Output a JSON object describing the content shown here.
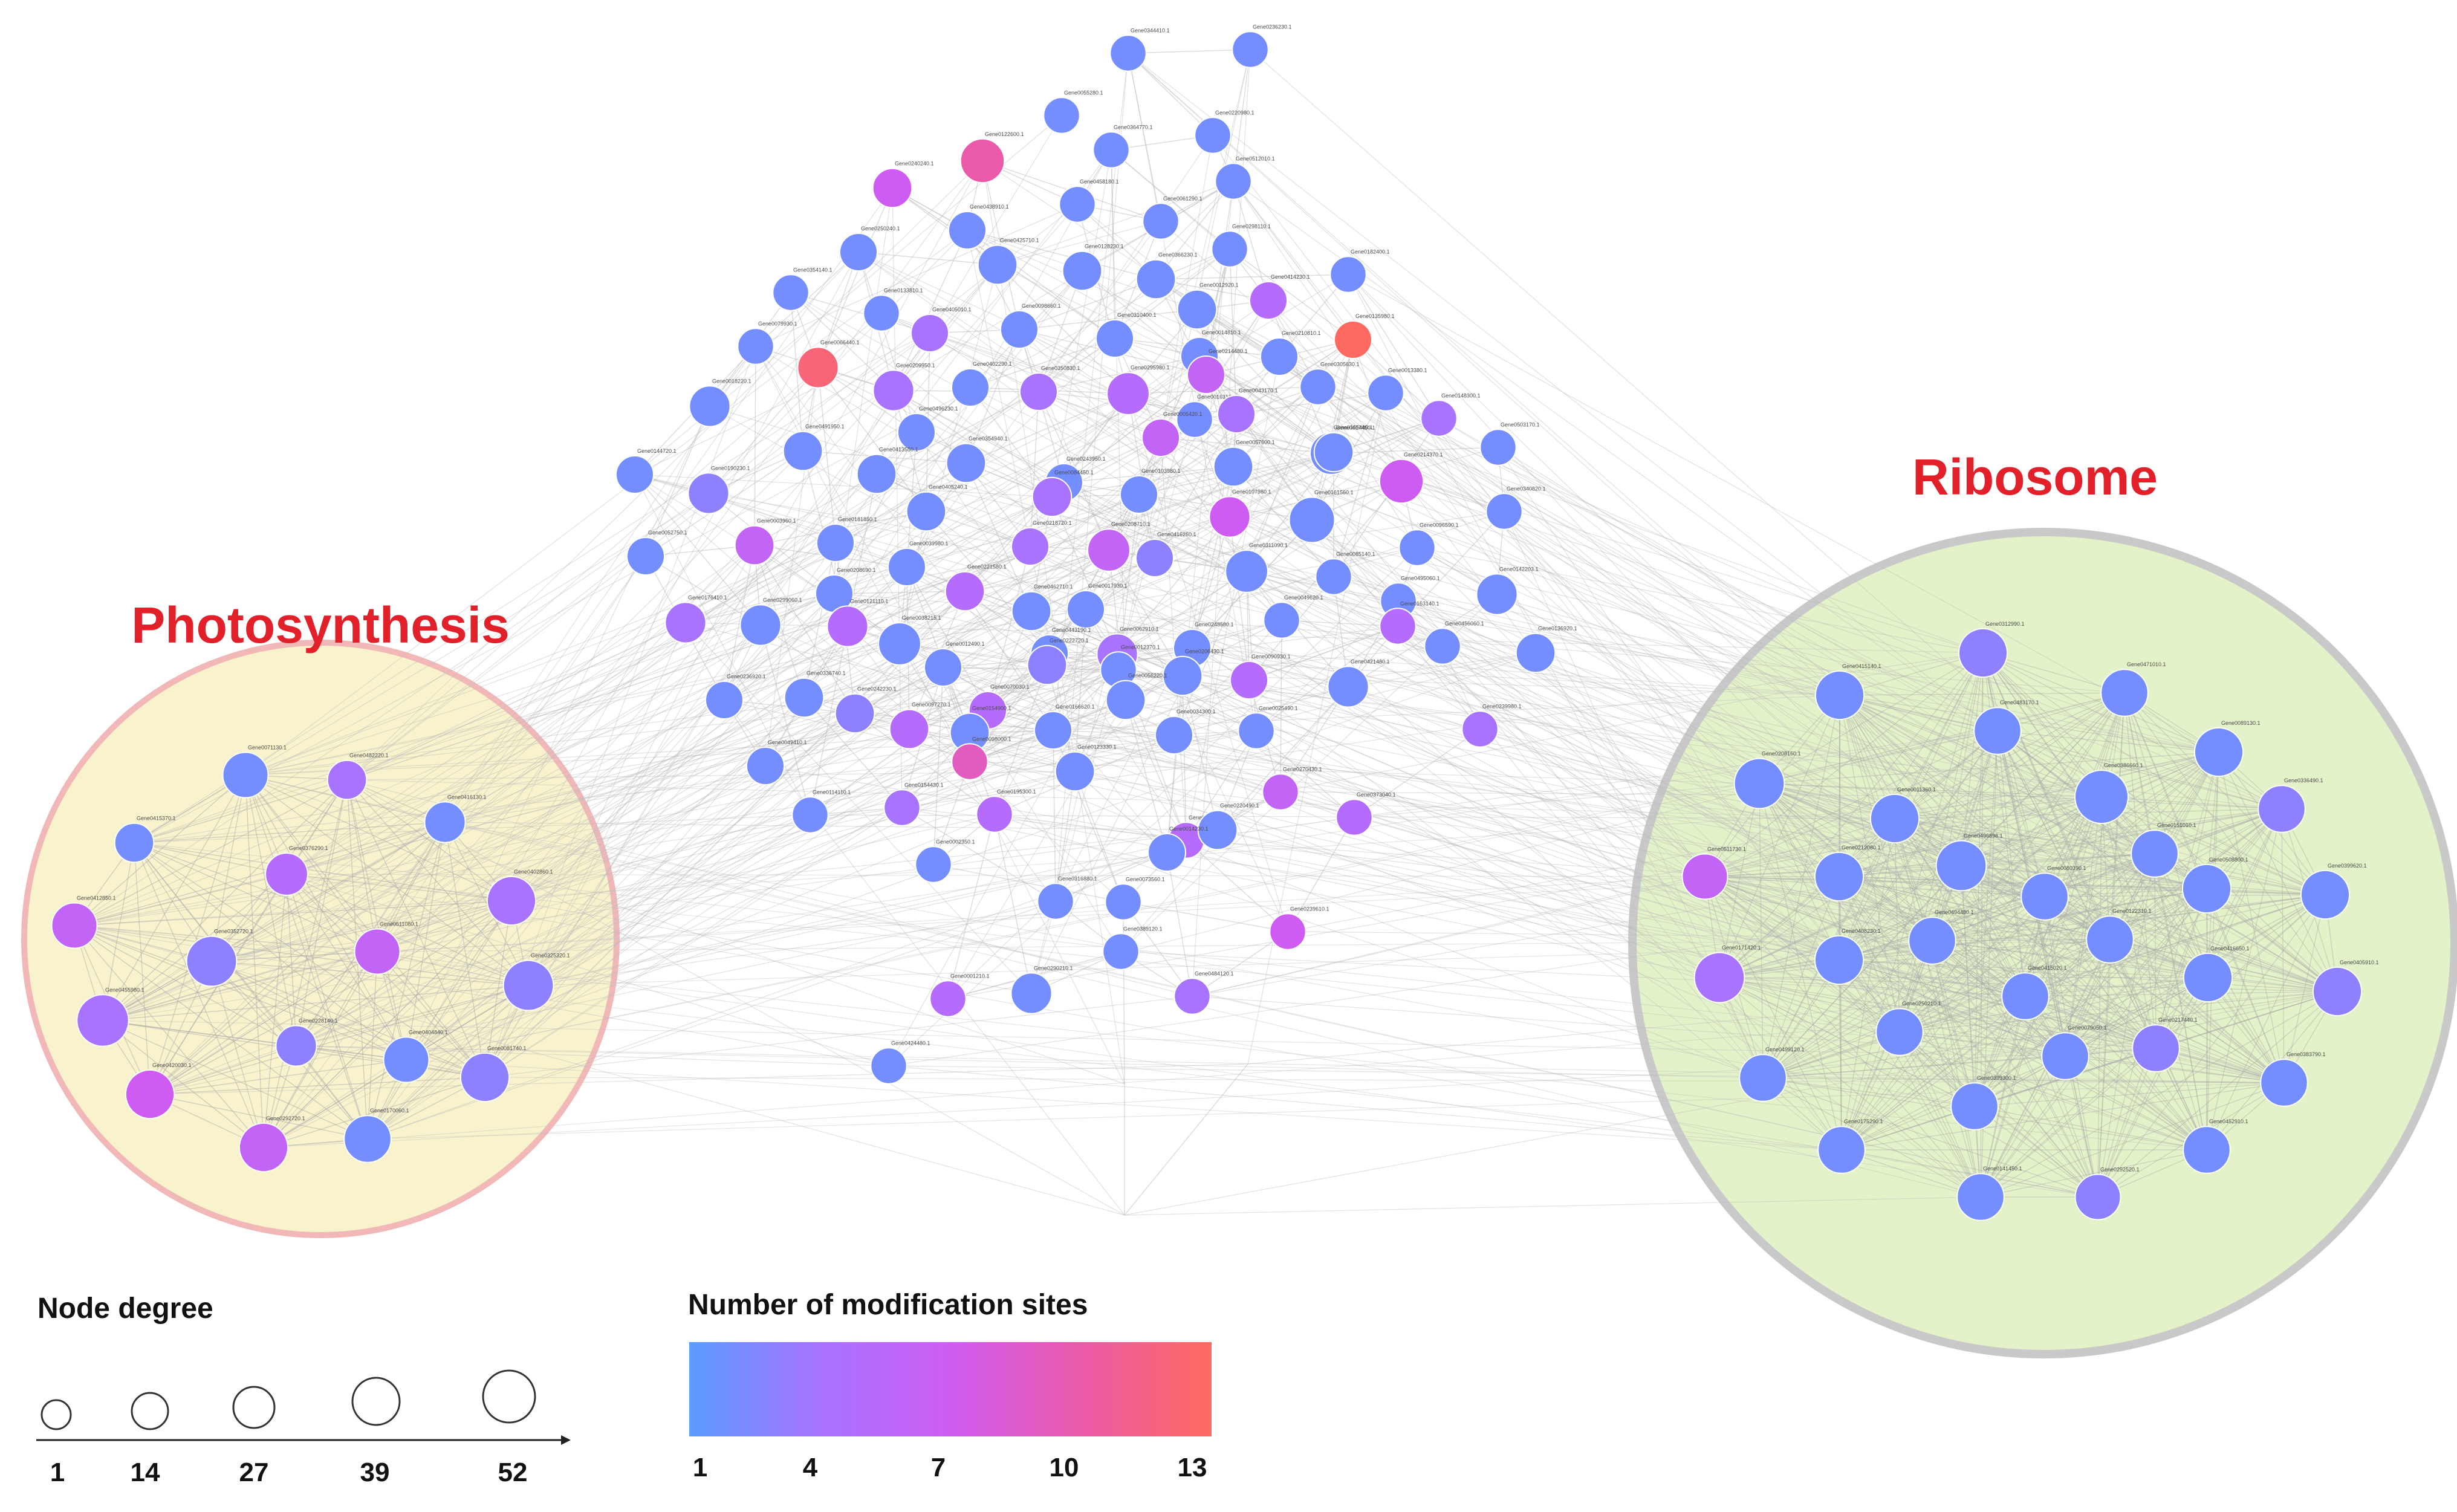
{
  "clusters": {
    "photosynthesis": {
      "title": "Photosynthesis",
      "fill": "#f8f3cc",
      "stroke": "#f2b8b8",
      "nodes": [
        {
          "label": "Gene0071130.1",
          "sites": 2,
          "degree": 30
        },
        {
          "label": "Gene0482220.1",
          "sites": 4,
          "degree": 22
        },
        {
          "label": "Gene0415370.1",
          "sites": 2,
          "degree": 22
        },
        {
          "label": "Gene0416130.1",
          "sites": 2,
          "degree": 24
        },
        {
          "label": "Gene0376290.1",
          "sites": 5,
          "degree": 26
        },
        {
          "label": "Gene0402860.1",
          "sites": 4,
          "degree": 34
        },
        {
          "label": "Gene0412850.1",
          "sites": 6,
          "degree": 30
        },
        {
          "label": "Gene0352720.1",
          "sites": 3,
          "degree": 36
        },
        {
          "label": "Gene0511080.1",
          "sites": 6,
          "degree": 30
        },
        {
          "label": "Gene0325320.1",
          "sites": 3,
          "degree": 36
        },
        {
          "label": "Gene0455980.1",
          "sites": 4,
          "degree": 38
        },
        {
          "label": "Gene0228140.1",
          "sites": 3,
          "degree": 24
        },
        {
          "label": "Gene0404840.1",
          "sites": 2,
          "degree": 30
        },
        {
          "label": "Gene0081740.1",
          "sites": 3,
          "degree": 34
        },
        {
          "label": "Gene0420030.1",
          "sites": 7,
          "degree": 34
        },
        {
          "label": "Gene0292720.1",
          "sites": 6,
          "degree": 34
        },
        {
          "label": "Gene0170060.1",
          "sites": 2,
          "degree": 32
        }
      ]
    },
    "ribosome": {
      "title": "Ribosome",
      "fill": "#e3f2c8",
      "stroke": "#c9c9c9",
      "nodes": [
        {
          "label": "Gene0312990.1",
          "sites": 3,
          "degree": 34
        },
        {
          "label": "Gene0415140.1",
          "sites": 2,
          "degree": 34
        },
        {
          "label": "Gene0471010.1",
          "sites": 2,
          "degree": 32
        },
        {
          "label": "Gene0483170.1",
          "sites": 2,
          "degree": 32
        },
        {
          "label": "Gene0089130.1",
          "sites": 2,
          "degree": 34
        },
        {
          "label": "Gene0208160.1",
          "sites": 2,
          "degree": 36
        },
        {
          "label": "Gene0386660.1",
          "sites": 2,
          "degree": 40
        },
        {
          "label": "Gene0336490.1",
          "sites": 3,
          "degree": 32
        },
        {
          "label": "Gene0011360.1",
          "sites": 2,
          "degree": 34
        },
        {
          "label": "Gene0151010.1",
          "sites": 2,
          "degree": 32
        },
        {
          "label": "Gene0511730.1",
          "sites": 6,
          "degree": 30
        },
        {
          "label": "Gene0212080.1",
          "sites": 2,
          "degree": 34
        },
        {
          "label": "Gene0496898.1",
          "sites": 2,
          "degree": 36
        },
        {
          "label": "Gene0080390.1",
          "sites": 2,
          "degree": 32
        },
        {
          "label": "Gene0508800.1",
          "sites": 2,
          "degree": 34
        },
        {
          "label": "Gene0399620.1",
          "sites": 2,
          "degree": 34
        },
        {
          "label": "Gene0494480.1",
          "sites": 2,
          "degree": 32
        },
        {
          "label": "Gene0122310.1",
          "sites": 2,
          "degree": 32
        },
        {
          "label": "Gene0171420.1",
          "sites": 4,
          "degree": 36
        },
        {
          "label": "Gene0408230.1",
          "sites": 2,
          "degree": 34
        },
        {
          "label": "Gene0416650.1",
          "sites": 2,
          "degree": 34
        },
        {
          "label": "Gene0405910.1",
          "sites": 3,
          "degree": 34
        },
        {
          "label": "Gene0415020.1",
          "sites": 2,
          "degree": 32
        },
        {
          "label": "Gene0250210.1",
          "sites": 2,
          "degree": 32
        },
        {
          "label": "Gene0079050.1",
          "sites": 2,
          "degree": 32
        },
        {
          "label": "Gene0217440.1",
          "sites": 3,
          "degree": 32
        },
        {
          "label": "Gene0499120.1",
          "sites": 2,
          "degree": 32
        },
        {
          "label": "Gene0383790.1",
          "sites": 2,
          "degree": 32
        },
        {
          "label": "Gene0399300.1",
          "sites": 2,
          "degree": 32
        },
        {
          "label": "Gene0175290.1",
          "sites": 2,
          "degree": 32
        },
        {
          "label": "Gene0452910.1",
          "sites": 2,
          "degree": 32
        },
        {
          "label": "Gene0141450.1",
          "sites": 2,
          "degree": 32
        },
        {
          "label": "Gene0292520.1",
          "sites": 3,
          "degree": 30
        }
      ]
    }
  },
  "main_nodes": [
    {
      "label": "Gene0344410.1",
      "sites": 2,
      "degree": 18
    },
    {
      "label": "Gene0236230.1",
      "sites": 2,
      "degree": 18
    },
    {
      "label": "Gene0055280.1",
      "sites": 2,
      "degree": 18
    },
    {
      "label": "Gene0220980.1",
      "sites": 2,
      "degree": 18
    },
    {
      "label": "Gene0122600.1",
      "sites": 10,
      "degree": 28
    },
    {
      "label": "Gene0364770.1",
      "sites": 2,
      "degree": 18
    },
    {
      "label": "Gene0240240.1",
      "sites": 7,
      "degree": 22
    },
    {
      "label": "Gene0512010.1",
      "sites": 2,
      "degree": 18
    },
    {
      "label": "Gene0458180.1",
      "sites": 2,
      "degree": 18
    },
    {
      "label": "Gene0061290.1",
      "sites": 2,
      "degree": 18
    },
    {
      "label": "Gene0438910.1",
      "sites": 2,
      "degree": 20
    },
    {
      "label": "Gene0298110.1",
      "sites": 2,
      "degree": 18
    },
    {
      "label": "Gene0250240.1",
      "sites": 2,
      "degree": 20
    },
    {
      "label": "Gene0425710.1",
      "sites": 2,
      "degree": 22
    },
    {
      "label": "Gene0128230.1",
      "sites": 2,
      "degree": 22
    },
    {
      "label": "Gene0366230.1",
      "sites": 2,
      "degree": 22
    },
    {
      "label": "Gene0182400.1",
      "sites": 2,
      "degree": 18
    },
    {
      "label": "Gene0354140.1",
      "sites": 2,
      "degree": 18
    },
    {
      "label": "Gene0012920.1",
      "sites": 2,
      "degree": 22
    },
    {
      "label": "Gene0414230.1",
      "sites": 5,
      "degree": 20
    },
    {
      "label": "Gene0133810.1",
      "sites": 2,
      "degree": 18
    },
    {
      "label": "Gene0405010.1",
      "sites": 4,
      "degree": 20
    },
    {
      "label": "Gene0098660.1",
      "sites": 2,
      "degree": 20
    },
    {
      "label": "Gene0310400.1",
      "sites": 2,
      "degree": 20
    },
    {
      "label": "Gene0014810.1",
      "sites": 2,
      "degree": 20
    },
    {
      "label": "Gene0135980.1",
      "sites": 13,
      "degree": 20
    },
    {
      "label": "Gene0079930.1",
      "sites": 2,
      "degree": 18
    },
    {
      "label": "Gene0066440.1",
      "sites": 12,
      "degree": 24
    },
    {
      "label": "Gene0210810.1",
      "sites": 2,
      "degree": 20
    },
    {
      "label": "Gene0209950.1",
      "sites": 4,
      "degree": 24
    },
    {
      "label": "Gene0402290.1",
      "sites": 2,
      "degree": 20
    },
    {
      "label": "Gene0350830.1",
      "sites": 4,
      "degree": 20
    },
    {
      "label": "Gene0295980.1",
      "sites": 5,
      "degree": 26
    },
    {
      "label": "Gene0214480.1",
      "sites": 6,
      "degree": 20
    },
    {
      "label": "Gene0016310.1",
      "sites": 2,
      "degree": 18
    },
    {
      "label": "Gene0305630.1",
      "sites": 2,
      "degree": 18
    },
    {
      "label": "Gene0013380.1",
      "sites": 2,
      "degree": 18
    },
    {
      "label": "Gene0018220.1",
      "sites": 2,
      "degree": 24
    },
    {
      "label": "Gene0491950.1",
      "sites": 2,
      "degree": 22
    },
    {
      "label": "Gene0496230.1",
      "sites": 2,
      "degree": 20
    },
    {
      "label": "Gene0005420.1",
      "sites": 6,
      "degree": 20
    },
    {
      "label": "Gene0043170.1",
      "sites": 4,
      "degree": 20
    },
    {
      "label": "Gene0148300.1",
      "sites": 4,
      "degree": 18
    },
    {
      "label": "Gene0503170.1",
      "sites": 2,
      "degree": 18
    },
    {
      "label": "Gene0165480.1",
      "sites": 2,
      "degree": 26
    },
    {
      "label": "Gene0413550.1",
      "sites": 2,
      "degree": 22
    },
    {
      "label": "Gene0354940.1",
      "sites": 2,
      "degree": 22
    },
    {
      "label": "Gene0243950.1",
      "sites": 2,
      "degree": 20
    },
    {
      "label": "Gene0057600.1",
      "sites": 2,
      "degree": 22
    },
    {
      "label": "Gene0017450.1",
      "sites": 2,
      "degree": 22
    },
    {
      "label": "Gene0214370.1",
      "sites": 7,
      "degree": 28
    },
    {
      "label": "Gene0144720.1",
      "sites": 2,
      "degree": 20
    },
    {
      "label": "Gene0190230.1",
      "sites": 3,
      "degree": 24
    },
    {
      "label": "Gene0084450.1",
      "sites": 4,
      "degree": 22
    },
    {
      "label": "Gene0103980.1",
      "sites": 2,
      "degree": 20
    },
    {
      "label": "Gene0107980.1",
      "sites": 7,
      "degree": 24
    },
    {
      "label": "Gene0161560.1",
      "sites": 2,
      "degree": 30
    },
    {
      "label": "Gene0340820.1",
      "sites": 2,
      "degree": 18
    },
    {
      "label": "Gene0405240.1",
      "sites": 2,
      "degree": 22
    },
    {
      "label": "Gene0181850.1",
      "sites": 2,
      "degree": 20
    },
    {
      "label": "Gene0218720.1",
      "sites": 4,
      "degree": 20
    },
    {
      "label": "Gene0208710.1",
      "sites": 6,
      "degree": 26
    },
    {
      "label": "Gene0416260.1",
      "sites": 3,
      "degree": 20
    },
    {
      "label": "Gene0096590.1",
      "sites": 2,
      "degree": 18
    },
    {
      "label": "Gene0052750.1",
      "sites": 2,
      "degree": 20
    },
    {
      "label": "Gene0003960.1",
      "sites": 6,
      "degree": 22
    },
    {
      "label": "Gene0039980.1",
      "sites": 2,
      "degree": 20
    },
    {
      "label": "Gene0208690.1",
      "sites": 2,
      "degree": 20
    },
    {
      "label": "Gene0221580.1",
      "sites": 5,
      "degree": 22
    },
    {
      "label": "Gene0311090.1",
      "sites": 2,
      "degree": 26
    },
    {
      "label": "Gene0085140.1",
      "sites": 2,
      "degree": 18
    },
    {
      "label": "Gene0495060.1",
      "sites": 2,
      "degree": 18
    },
    {
      "label": "Gene0176410.1",
      "sites": 4,
      "degree": 24
    },
    {
      "label": "Gene0299060.1",
      "sites": 2,
      "degree": 24
    },
    {
      "label": "Gene0121110.1",
      "sites": 5,
      "degree": 24
    },
    {
      "label": "Gene0462710.1",
      "sites": 2,
      "degree": 22
    },
    {
      "label": "Gene0017930.1",
      "sites": 2,
      "degree": 20
    },
    {
      "label": "Gene0049620.1",
      "sites": 2,
      "degree": 18
    },
    {
      "label": "Gene0163140.1",
      "sites": 5,
      "degree": 18
    },
    {
      "label": "Gene0142203.1",
      "sites": 2,
      "degree": 24
    },
    {
      "label": "Gene0038215.1",
      "sites": 2,
      "degree": 26
    },
    {
      "label": "Gene0443190.1",
      "sites": 2,
      "degree": 20
    },
    {
      "label": "Gene0062910.1",
      "sites": 4,
      "degree": 24
    },
    {
      "label": "Gene0248580.1",
      "sites": 2,
      "degree": 20
    },
    {
      "label": "Gene0012370.1",
      "sites": 2,
      "degree": 18
    },
    {
      "label": "Gene0456060.1",
      "sites": 2,
      "degree": 18
    },
    {
      "label": "Gene0136920.1",
      "sites": 2,
      "degree": 22
    },
    {
      "label": "Gene0206430.1",
      "sites": 2,
      "degree": 22
    },
    {
      "label": "Gene0090930.1",
      "sites": 5,
      "degree": 20
    },
    {
      "label": "Gene0012490.1",
      "sites": 2,
      "degree": 20
    },
    {
      "label": "Gene0222720.1",
      "sites": 3,
      "degree": 22
    },
    {
      "label": "Gene0236920.1",
      "sites": 2,
      "degree": 20
    },
    {
      "label": "Gene0336740.1",
      "sites": 2,
      "degree": 22
    },
    {
      "label": "Gene0242230.1",
      "sites": 3,
      "degree": 22
    },
    {
      "label": "Gene0097270.1",
      "sites": 5,
      "degree": 22
    },
    {
      "label": "Gene0070030.1",
      "sites": 5,
      "degree": 20
    },
    {
      "label": "Gene0056220.1",
      "sites": 2,
      "degree": 22
    },
    {
      "label": "Gene0421480.1",
      "sites": 2,
      "degree": 24
    },
    {
      "label": "Gene0166620.1",
      "sites": 2,
      "degree": 20
    },
    {
      "label": "Gene0239980.1",
      "sites": 4,
      "degree": 18
    },
    {
      "label": "Gene0154900.1",
      "sites": 2,
      "degree": 22
    },
    {
      "label": "Gene0025490.1",
      "sites": 2,
      "degree": 18
    },
    {
      "label": "Gene0034300.1",
      "sites": 2,
      "degree": 20
    },
    {
      "label": "Gene0049410.1",
      "sites": 2,
      "degree": 20
    },
    {
      "label": "Gene0123330.1",
      "sites": 2,
      "degree": 22
    },
    {
      "label": "Gene0098000.1",
      "sites": 9,
      "degree": 18
    },
    {
      "label": "Gene0114110.1",
      "sites": 2,
      "degree": 18
    },
    {
      "label": "Gene0154430.1",
      "sites": 4,
      "degree": 18
    },
    {
      "label": "Gene0195300.1",
      "sites": 5,
      "degree": 18
    },
    {
      "label": "Gene0414100.1",
      "sites": 5,
      "degree": 18
    },
    {
      "label": "Gene0002350.1",
      "sites": 2,
      "degree": 18
    },
    {
      "label": "Gene0373040.1",
      "sites": 5,
      "degree": 18
    },
    {
      "label": "Gene0270430.1",
      "sites": 6,
      "degree": 18
    },
    {
      "label": "Gene0220490.1",
      "sites": 2,
      "degree": 22
    },
    {
      "label": "Gene0316880.1",
      "sites": 2,
      "degree": 18
    },
    {
      "label": "Gene0073560.1",
      "sites": 2,
      "degree": 18
    },
    {
      "label": "Gene0014230.1",
      "sites": 2,
      "degree": 20
    },
    {
      "label": "Gene0239610.1",
      "sites": 7,
      "degree": 18
    },
    {
      "label": "Gene0389120.1",
      "sites": 2,
      "degree": 18
    },
    {
      "label": "Gene0484120.1",
      "sites": 4,
      "degree": 18
    },
    {
      "label": "Gene0290210.1",
      "sites": 2,
      "degree": 24
    },
    {
      "label": "Gene0001210.1",
      "sites": 5,
      "degree": 18
    },
    {
      "label": "Gene0424480.1",
      "sites": 2,
      "degree": 18
    }
  ],
  "legend": {
    "degree": {
      "title": "Node degree",
      "ticks": [
        "1",
        "14",
        "27",
        "39",
        "52"
      ]
    },
    "sites": {
      "title": "Number of modification sites",
      "ticks": [
        "1",
        "4",
        "7",
        "10",
        "13"
      ],
      "colors": [
        "#5b9cff",
        "#a873ff",
        "#cf5cf2",
        "#ea5aa8",
        "#ff6a60"
      ]
    }
  },
  "colors": {
    "edge": "#bdbdbd",
    "cluster_edge": "#a9a9a9",
    "node_outline": "#ffffff",
    "title_red": "#e1202a"
  }
}
